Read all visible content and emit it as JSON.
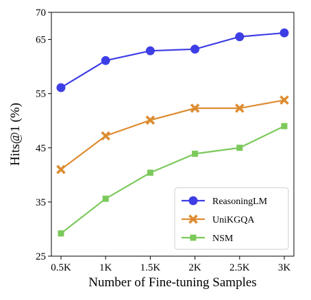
{
  "chart_data": {
    "type": "line",
    "categories": [
      "0.5K",
      "1K",
      "1.5K",
      "2K",
      "2.5K",
      "3K"
    ],
    "xlabel": "Number of Fine-tuning Samples",
    "ylabel": "Hits@1 (%)",
    "ylim": [
      25,
      70
    ],
    "yticks": [
      "25",
      "35",
      "45",
      "55",
      "65",
      "70"
    ],
    "grid": false,
    "legend_position": "bottom-right",
    "series": [
      {
        "name": "ReasoningLM",
        "marker": "circle",
        "color": "#3e3ee6",
        "values": [
          56.1,
          61.1,
          62.9,
          63.2,
          65.5,
          66.2
        ]
      },
      {
        "name": "UniKGQA",
        "marker": "x",
        "color": "#dd8c31",
        "values": [
          41.0,
          47.2,
          50.1,
          52.3,
          52.3,
          53.8
        ]
      },
      {
        "name": "NSM",
        "marker": "square",
        "color": "#7cc95b",
        "values": [
          29.2,
          35.6,
          40.4,
          43.9,
          45.0,
          49.0
        ]
      }
    ]
  }
}
